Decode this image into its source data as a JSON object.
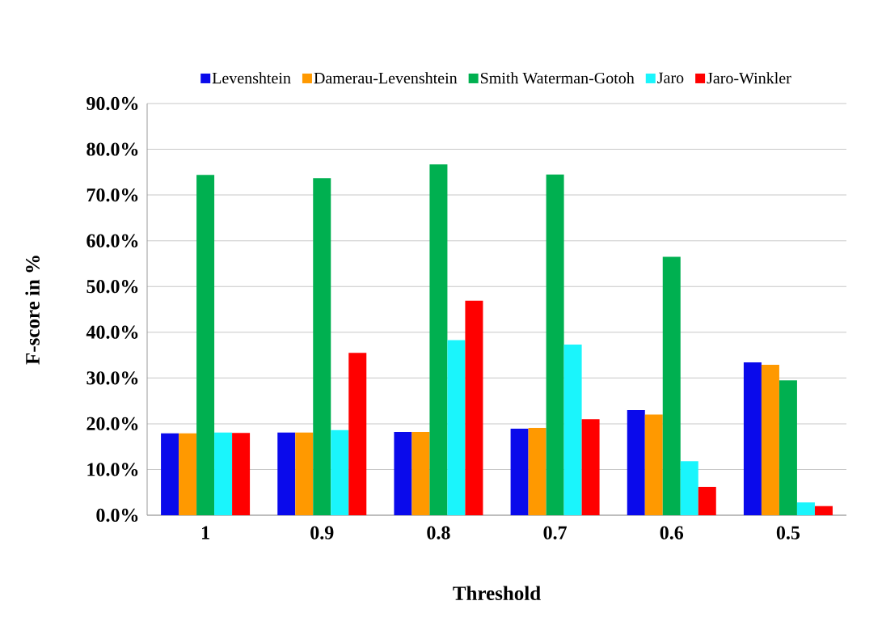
{
  "chart_data": {
    "type": "bar",
    "xlabel": "Threshold",
    "ylabel": "F-score in %",
    "categories": [
      "1",
      "0.9",
      "0.8",
      "0.7",
      "0.6",
      "0.5"
    ],
    "series": [
      {
        "name": "Levenshtein",
        "color": "#0a0aeb",
        "values": [
          17.9,
          18.1,
          18.2,
          18.9,
          23.0,
          33.4
        ]
      },
      {
        "name": "Damerau-Levenshtein",
        "color": "#ff9900",
        "values": [
          17.9,
          18.1,
          18.2,
          19.1,
          22.0,
          32.9
        ]
      },
      {
        "name": "Smith Waterman-Gotoh",
        "color": "#00b050",
        "values": [
          74.4,
          73.7,
          76.7,
          74.5,
          56.5,
          29.5
        ]
      },
      {
        "name": "Jaro",
        "color": "#1af5fc",
        "values": [
          18.1,
          18.6,
          38.3,
          37.3,
          11.8,
          2.8
        ]
      },
      {
        "name": "Jaro-Winkler",
        "color": "#ff0000",
        "values": [
          18.0,
          35.5,
          46.9,
          21.0,
          6.2,
          2.0
        ]
      }
    ],
    "ylim": [
      0,
      90
    ],
    "yticks": [
      {
        "value": 0,
        "label": "0.0%"
      },
      {
        "value": 10,
        "label": "10.0%"
      },
      {
        "value": 20,
        "label": "20.0%"
      },
      {
        "value": 30,
        "label": "30.0%"
      },
      {
        "value": 40,
        "label": "40.0%"
      },
      {
        "value": 50,
        "label": "50.0%"
      },
      {
        "value": 60,
        "label": "60.0%"
      },
      {
        "value": 70,
        "label": "70.0%"
      },
      {
        "value": 80,
        "label": "80.0%"
      },
      {
        "value": 90,
        "label": "90.0%"
      }
    ],
    "grid": "y",
    "legend": "top"
  }
}
